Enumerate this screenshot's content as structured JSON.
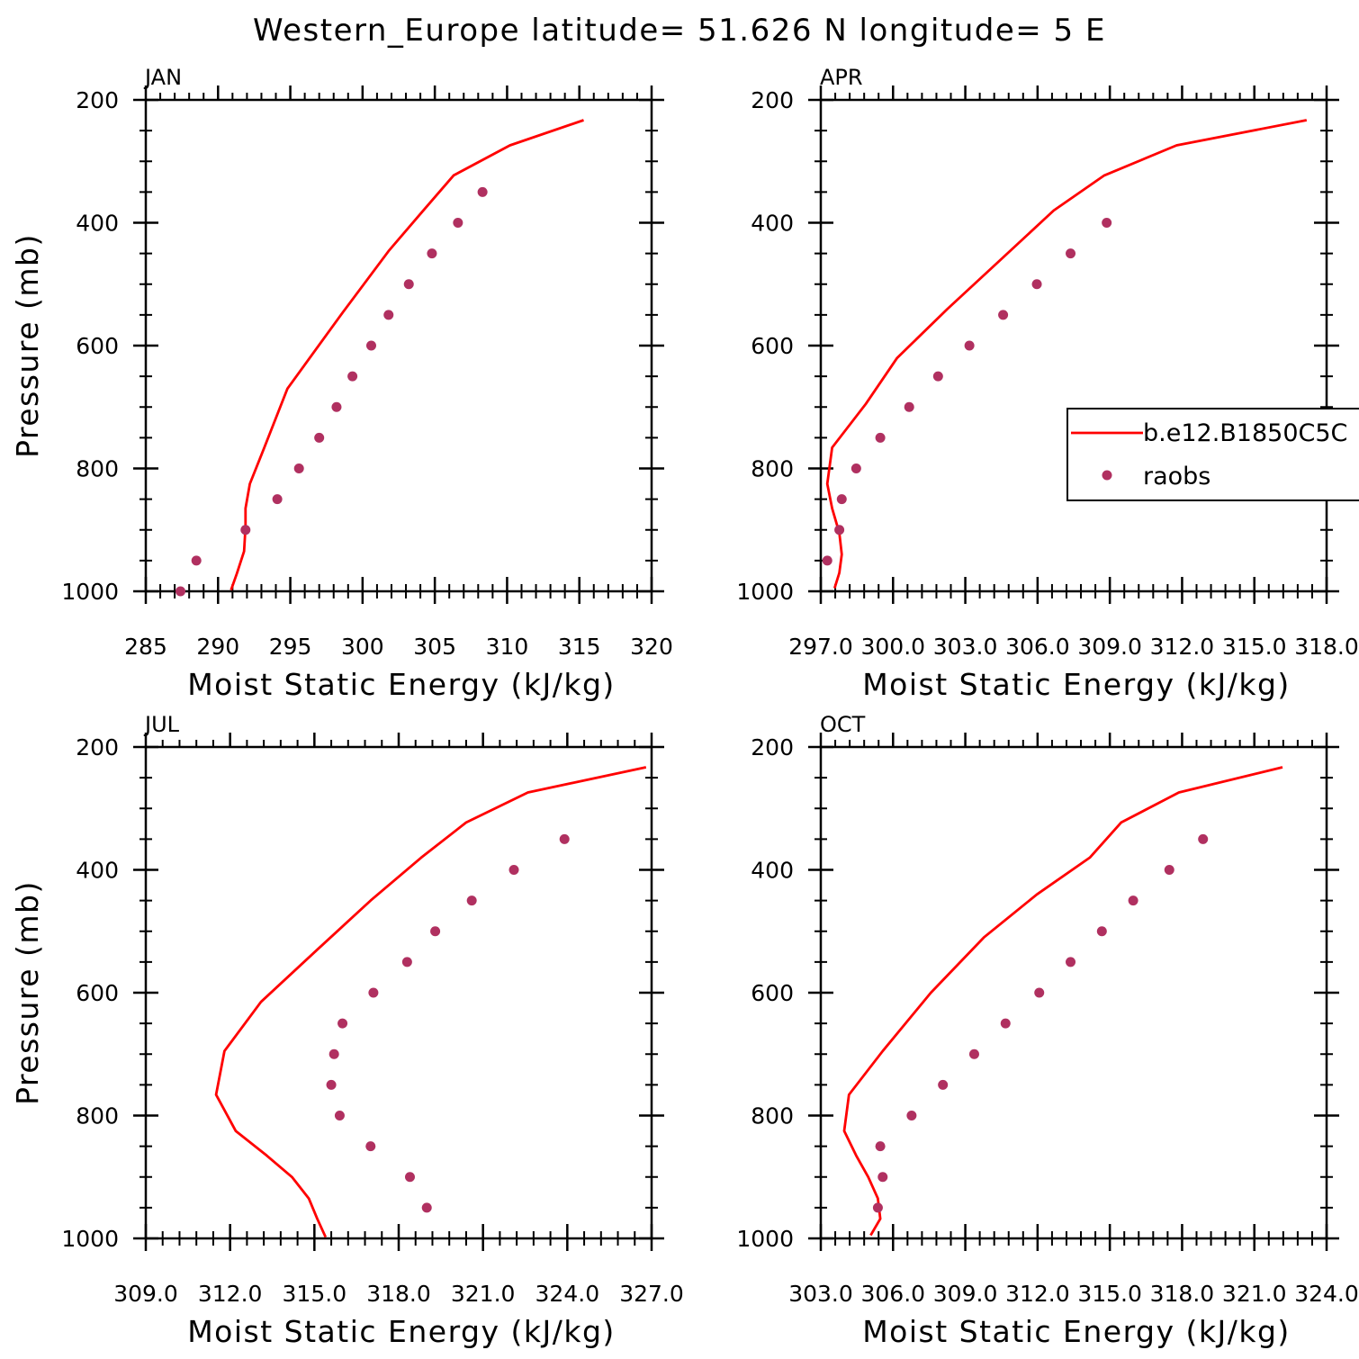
{
  "title": "Western_Europe  latitude= 51.626 N longitude= 5 E",
  "legend": {
    "placement": "right side of APR panel (clipped at page edge)",
    "items": [
      {
        "label": "b.e12.B1850C5C",
        "kind": "line",
        "color": "#ff0000"
      },
      {
        "label": "raobs",
        "kind": "marker",
        "color": "#b03060"
      }
    ]
  },
  "chart_data": [
    {
      "type": "line",
      "panel_label": "JAN",
      "xlabel": "Moist Static Energy (kJ/kg)",
      "ylabel": "Pressure (mb)",
      "xlim": [
        285,
        320
      ],
      "ylim": [
        200,
        1000
      ],
      "y_inverted": true,
      "x_ticks": [
        285,
        290,
        295,
        300,
        305,
        310,
        315,
        320
      ],
      "x_tick_labels": [
        "285",
        "290",
        "295",
        "300",
        "305",
        "310",
        "315",
        "320"
      ],
      "y_ticks": [
        200,
        400,
        600,
        800,
        1000
      ],
      "y_tick_labels": [
        "200",
        "400",
        "600",
        "800",
        "1000"
      ],
      "series": [
        {
          "name": "b.e12.B1850C5C",
          "style": "line",
          "color": "#ff0000",
          "points": [
            [
              315.3,
              233
            ],
            [
              310.2,
              274
            ],
            [
              306.3,
              323
            ],
            [
              304.2,
              380
            ],
            [
              301.8,
              446
            ],
            [
              298.5,
              550
            ],
            [
              294.8,
              670
            ],
            [
              293.2,
              766
            ],
            [
              292.2,
              825
            ],
            [
              291.9,
              865
            ],
            [
              291.9,
              895
            ],
            [
              291.8,
              935
            ],
            [
              291.3,
              971
            ],
            [
              290.9,
              998
            ]
          ]
        },
        {
          "name": "raobs",
          "style": "markers",
          "color": "#b03060",
          "points": [
            [
              308.3,
              350
            ],
            [
              306.6,
              400
            ],
            [
              304.8,
              450
            ],
            [
              303.2,
              500
            ],
            [
              301.8,
              550
            ],
            [
              300.6,
              600
            ],
            [
              299.3,
              650
            ],
            [
              298.2,
              700
            ],
            [
              297.0,
              750
            ],
            [
              295.6,
              800
            ],
            [
              294.1,
              850
            ],
            [
              291.9,
              900
            ],
            [
              288.5,
              950
            ],
            [
              287.4,
              1000
            ]
          ]
        }
      ]
    },
    {
      "type": "line",
      "panel_label": "APR",
      "xlabel": "Moist Static Energy (kJ/kg)",
      "ylabel": "Pressure (mb)",
      "xlim": [
        297.03,
        318.03
      ],
      "ylim": [
        200,
        1000
      ],
      "y_inverted": true,
      "x_ticks": [
        297.03,
        300.03,
        303.03,
        306.03,
        309.03,
        312.03,
        315.03,
        318.03
      ],
      "x_tick_labels": [
        "297.0",
        "300.0",
        "303.0",
        "306.0",
        "309.0",
        "312.0",
        "315.0",
        "318.0"
      ],
      "y_ticks": [
        200,
        400,
        600,
        800,
        1000
      ],
      "y_tick_labels": [
        "200",
        "400",
        "600",
        "800",
        "1000"
      ],
      "series": [
        {
          "name": "b.e12.B1850C5C",
          "style": "line",
          "color": "#ff0000",
          "points": [
            [
              317.2,
              233
            ],
            [
              311.8,
              274
            ],
            [
              308.8,
              323
            ],
            [
              306.7,
              380
            ],
            [
              304.5,
              460
            ],
            [
              302.3,
              540
            ],
            [
              300.2,
              620
            ],
            [
              298.9,
              695
            ],
            [
              297.5,
              766
            ],
            [
              297.3,
              825
            ],
            [
              297.5,
              865
            ],
            [
              297.8,
              905
            ],
            [
              297.9,
              940
            ],
            [
              297.8,
              970
            ],
            [
              297.6,
              995
            ]
          ]
        },
        {
          "name": "raobs",
          "style": "markers",
          "color": "#b03060",
          "points": [
            [
              308.9,
              400
            ],
            [
              307.4,
              450
            ],
            [
              306.0,
              500
            ],
            [
              304.6,
              550
            ],
            [
              303.2,
              600
            ],
            [
              301.9,
              650
            ],
            [
              300.7,
              700
            ],
            [
              299.5,
              750
            ],
            [
              298.5,
              800
            ],
            [
              297.9,
              850
            ],
            [
              297.8,
              900
            ],
            [
              297.3,
              950
            ]
          ]
        }
      ]
    },
    {
      "type": "line",
      "panel_label": "JUL",
      "xlabel": "Moist Static Energy (kJ/kg)",
      "ylabel": "Pressure (mb)",
      "xlim": [
        309.0,
        327.0
      ],
      "ylim": [
        200,
        1000
      ],
      "y_inverted": true,
      "x_ticks": [
        309,
        312,
        315,
        318,
        321,
        324,
        327
      ],
      "x_tick_labels": [
        "309.0",
        "312.0",
        "315.0",
        "318.0",
        "321.0",
        "324.0",
        "327.0"
      ],
      "y_ticks": [
        200,
        400,
        600,
        800,
        1000
      ],
      "y_tick_labels": [
        "200",
        "400",
        "600",
        "800",
        "1000"
      ],
      "series": [
        {
          "name": "b.e12.B1850C5C",
          "style": "line",
          "color": "#ff0000",
          "points": [
            [
              326.8,
              233
            ],
            [
              322.6,
              274
            ],
            [
              320.4,
              323
            ],
            [
              318.8,
              380
            ],
            [
              317.0,
              450
            ],
            [
              315.1,
              530
            ],
            [
              313.1,
              615
            ],
            [
              311.8,
              695
            ],
            [
              311.5,
              766
            ],
            [
              312.2,
              825
            ],
            [
              313.3,
              865
            ],
            [
              314.2,
              900
            ],
            [
              314.8,
              935
            ],
            [
              315.1,
              968
            ],
            [
              315.4,
              998
            ]
          ]
        },
        {
          "name": "raobs",
          "style": "markers",
          "color": "#b03060",
          "points": [
            [
              323.9,
              350
            ],
            [
              322.1,
              400
            ],
            [
              320.6,
              450
            ],
            [
              319.3,
              500
            ],
            [
              318.3,
              550
            ],
            [
              317.1,
              600
            ],
            [
              316.0,
              650
            ],
            [
              315.7,
              700
            ],
            [
              315.6,
              750
            ],
            [
              315.9,
              800
            ],
            [
              317.0,
              850
            ],
            [
              318.4,
              900
            ],
            [
              319.0,
              950
            ]
          ]
        }
      ]
    },
    {
      "type": "line",
      "panel_label": "OCT",
      "xlabel": "Moist Static Energy (kJ/kg)",
      "ylabel": "Pressure (mb)",
      "xlim": [
        303.03,
        324.03
      ],
      "ylim": [
        200,
        1000
      ],
      "y_inverted": true,
      "x_ticks": [
        303.03,
        306.03,
        309.03,
        312.03,
        315.03,
        318.03,
        321.03,
        324.03
      ],
      "x_tick_labels": [
        "303.0",
        "306.0",
        "309.0",
        "312.0",
        "315.0",
        "318.0",
        "321.0",
        "324.0"
      ],
      "y_ticks": [
        200,
        400,
        600,
        800,
        1000
      ],
      "y_tick_labels": [
        "200",
        "400",
        "600",
        "800",
        "1000"
      ],
      "series": [
        {
          "name": "b.e12.B1850C5C",
          "style": "line",
          "color": "#ff0000",
          "points": [
            [
              322.2,
              233
            ],
            [
              317.9,
              274
            ],
            [
              315.5,
              323
            ],
            [
              314.2,
              380
            ],
            [
              312.0,
              440
            ],
            [
              309.8,
              510
            ],
            [
              307.6,
              600
            ],
            [
              305.6,
              695
            ],
            [
              304.2,
              766
            ],
            [
              304.0,
              825
            ],
            [
              304.5,
              865
            ],
            [
              305.0,
              900
            ],
            [
              305.4,
              935
            ],
            [
              305.5,
              968
            ],
            [
              305.1,
              995
            ]
          ]
        },
        {
          "name": "raobs",
          "style": "markers",
          "color": "#b03060",
          "points": [
            [
              318.9,
              350
            ],
            [
              317.5,
              400
            ],
            [
              316.0,
              450
            ],
            [
              314.7,
              500
            ],
            [
              313.4,
              550
            ],
            [
              312.1,
              600
            ],
            [
              310.7,
              650
            ],
            [
              309.4,
              700
            ],
            [
              308.1,
              750
            ],
            [
              306.8,
              800
            ],
            [
              305.5,
              850
            ],
            [
              305.6,
              900
            ],
            [
              305.4,
              950
            ]
          ]
        }
      ]
    }
  ]
}
